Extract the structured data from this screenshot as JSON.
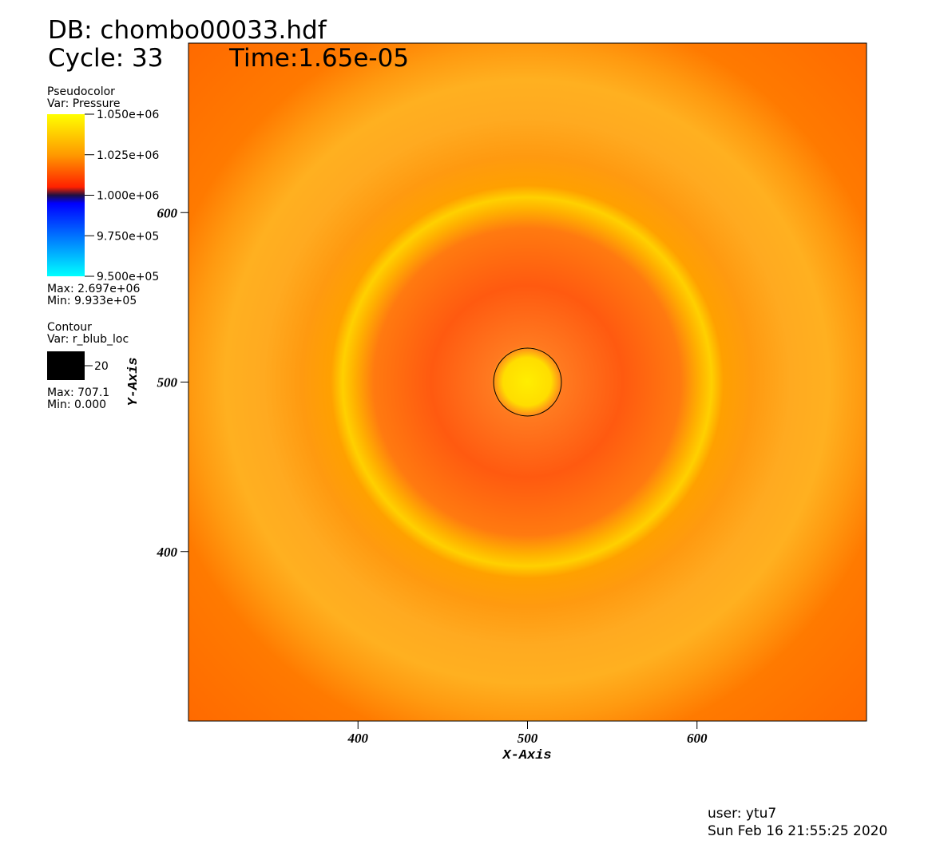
{
  "chart_data": {
    "type": "pseudocolor",
    "title": "DB: chombo00033.hdf",
    "subtitle": "Cycle: 33",
    "time_label": "Time:1.65e-05",
    "x_label": "X-Axis",
    "y_label": "Y-Axis",
    "xlim": [
      300,
      700
    ],
    "ylim": [
      300,
      700
    ],
    "xticks": [
      400,
      500,
      600
    ],
    "yticks": [
      400,
      500,
      600
    ],
    "pseudocolor": {
      "title": "Pseudocolor",
      "var": "Var: Pressure",
      "range": [
        950000,
        1050000
      ],
      "ticks": [
        {
          "value": 1050000,
          "label": "1.050e+06"
        },
        {
          "value": 1025000,
          "label": "1.025e+06"
        },
        {
          "value": 1000000,
          "label": "1.000e+06"
        },
        {
          "value": 975000,
          "label": "9.750e+05"
        },
        {
          "value": 950000,
          "label": "9.500e+05"
        }
      ],
      "max": "Max: 2.697e+06",
      "min": "Min: 9.933e+05"
    },
    "contour": {
      "title": "Contour",
      "var": "Var: r_blub_loc",
      "levels": [
        20
      ],
      "color": "#000000",
      "center": [
        500,
        500
      ],
      "max": "Max: 707.1",
      "min": "Min: 0.000"
    },
    "footer": {
      "user": "user: ytu7",
      "date": "Sun Feb 16 21:55:25 2020"
    }
  }
}
